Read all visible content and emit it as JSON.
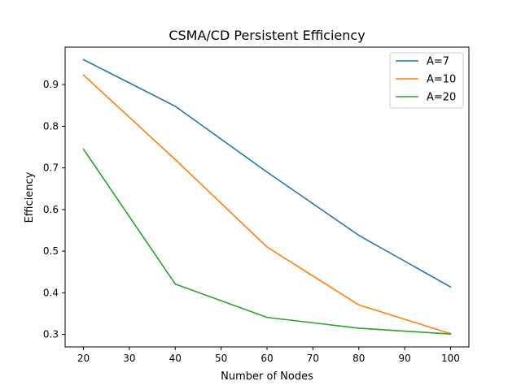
{
  "chart_data": {
    "type": "line",
    "title": "CSMA/CD Persistent Efficiency",
    "xlabel": "Number of Nodes",
    "ylabel": "Efficiency",
    "x": [
      20,
      40,
      60,
      80,
      100
    ],
    "xlim": [
      16,
      104
    ],
    "ylim": [
      0.27,
      0.99
    ],
    "xticks": [
      20,
      30,
      40,
      50,
      60,
      70,
      80,
      90,
      100
    ],
    "yticks": [
      0.3,
      0.4,
      0.5,
      0.6,
      0.7,
      0.8,
      0.9
    ],
    "ytick_labels": [
      "0.3",
      "0.4",
      "0.5",
      "0.6",
      "0.7",
      "0.8",
      "0.9"
    ],
    "grid": false,
    "legend_position": "upper right",
    "series": [
      {
        "name": "A=7",
        "color": "#1f77b4",
        "values": [
          0.96,
          0.848,
          0.69,
          0.538,
          0.414
        ]
      },
      {
        "name": "A=10",
        "color": "#ff7f0e",
        "values": [
          0.923,
          0.72,
          0.51,
          0.371,
          0.302
        ]
      },
      {
        "name": "A=20",
        "color": "#2ca02c",
        "values": [
          0.745,
          0.421,
          0.341,
          0.315,
          0.301
        ]
      }
    ]
  }
}
